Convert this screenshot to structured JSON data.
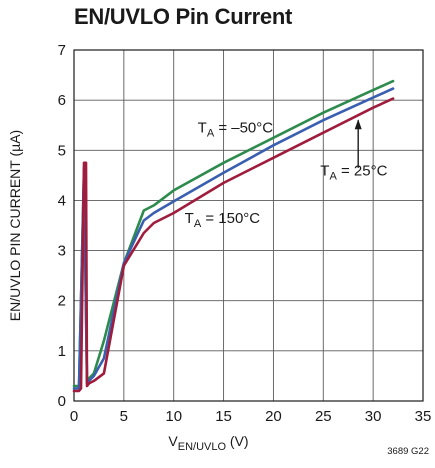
{
  "chart_data": {
    "type": "line",
    "title": "EN/UVLO Pin Current",
    "xlabel": {
      "main": "V",
      "sub": "EN/UVLO",
      "unit": " (V)"
    },
    "ylabel": "EN/UVLO PIN CURRENT (µA)",
    "xlim": [
      0,
      35
    ],
    "ylim": [
      0,
      7
    ],
    "xticks": [
      0,
      5,
      10,
      15,
      20,
      25,
      30,
      35
    ],
    "yticks": [
      0,
      1,
      2,
      3,
      4,
      5,
      6,
      7
    ],
    "grid": true,
    "figure_code": "3689 G22",
    "series": [
      {
        "label": {
          "main": "T",
          "sub": "A",
          "rest": " = –50°C"
        },
        "color": "#2e8b4e",
        "x": [
          0,
          0.5,
          1.0,
          1.3,
          1.5,
          2,
          3,
          5,
          7,
          8,
          10,
          15,
          20,
          25,
          30,
          32
        ],
        "y": [
          0.3,
          0.3,
          4.55,
          0.38,
          0.45,
          0.55,
          1.2,
          2.75,
          3.8,
          3.9,
          4.2,
          4.75,
          5.25,
          5.75,
          6.2,
          6.38
        ]
      },
      {
        "label": {
          "main": "T",
          "sub": "A",
          "rest": " = 25°C"
        },
        "color": "#3a5fb0",
        "x": [
          0,
          0.5,
          1.0,
          1.3,
          1.5,
          2,
          3,
          5,
          7,
          8,
          10,
          15,
          20,
          25,
          30,
          32
        ],
        "y": [
          0.25,
          0.25,
          4.65,
          0.35,
          0.4,
          0.5,
          0.85,
          2.75,
          3.6,
          3.75,
          3.98,
          4.55,
          5.1,
          5.6,
          6.05,
          6.23
        ]
      },
      {
        "label": {
          "main": "T",
          "sub": "A",
          "rest": " = 150°C"
        },
        "color": "#a01c3c",
        "x": [
          0,
          0.3,
          0.5,
          0.7,
          1.0,
          1.2,
          1.3,
          1.5,
          2,
          3,
          5,
          7,
          8,
          10,
          15,
          20,
          25,
          30,
          32
        ],
        "y": [
          0.2,
          0.2,
          0.2,
          0.25,
          4.75,
          4.75,
          0.3,
          0.35,
          0.4,
          0.55,
          2.7,
          3.35,
          3.55,
          3.75,
          4.35,
          4.85,
          5.35,
          5.85,
          6.03
        ]
      }
    ],
    "annotations": [
      {
        "main": "T",
        "sub": "A",
        "rest": " = –50°C",
        "x": 12.4,
        "y": 5.35
      },
      {
        "main": "T",
        "sub": "A",
        "rest": " = 25°C",
        "x": 24.7,
        "y": 4.5
      },
      {
        "main": "T",
        "sub": "A",
        "rest": " = 150°C",
        "x": 11.1,
        "y": 3.55
      }
    ]
  }
}
